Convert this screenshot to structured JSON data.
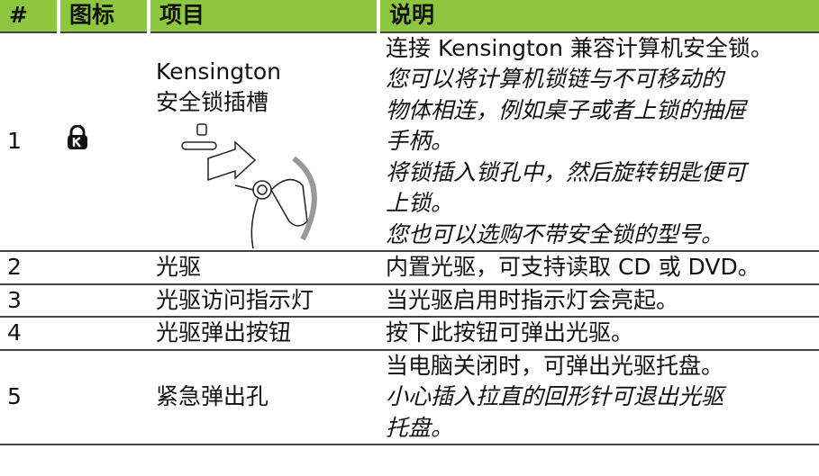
{
  "header": {
    "columns": [
      "#",
      "图标",
      "项目",
      "说明"
    ]
  },
  "table": {
    "rows": [
      {
        "number": "1",
        "item": [
          "Kensington",
          "安全锁插槽"
        ],
        "description": "连接 Kensington 兼容计算机安全锁。",
        "notes": [
          [
            "您可以将计算机锁链与不可移动的",
            "物体相连，例如桌子或者上锁的抽屉",
            "手柄。"
          ],
          [
            "将锁插入锁孔中，然后旋转钥匙便可",
            "上锁。"
          ],
          [
            "您也可以选购不带安全锁的型号。"
          ]
        ]
      },
      {
        "number": "2",
        "item": [
          "光驱"
        ],
        "description": "内置光驱，可支持读取 CD 或 DVD。",
        "notes": []
      },
      {
        "number": "3",
        "item": [
          "光驱访问指示灯"
        ],
        "description": "当光驱启用时指示灯会亮起。",
        "notes": []
      },
      {
        "number": "4",
        "item": [
          "光驱弹出按钮"
        ],
        "description": "按下此按钮可弹出光驱。",
        "notes": []
      },
      {
        "number": "5",
        "item": [
          "紧急弹出孔"
        ],
        "description": "当电脑关闭时，可弹出光驱托盘。",
        "notes": [
          [
            "小心插入拉直的回形针可退出光驱",
            "托盘。"
          ]
        ]
      }
    ]
  }
}
